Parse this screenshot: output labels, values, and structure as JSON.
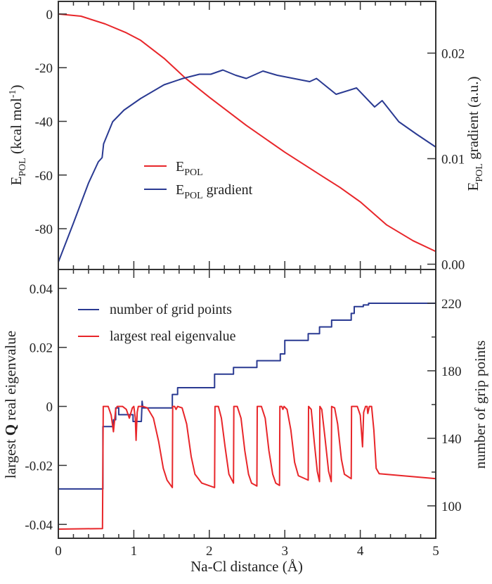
{
  "chart_data": [
    {
      "type": "line",
      "panel": "top",
      "xlim": [
        0,
        5
      ],
      "ylim_left": [
        -95.2,
        4.7
      ],
      "ylim_right": [
        -0.0005,
        0.0249
      ],
      "ylabel_left": {
        "main": "E",
        "sub": "POL",
        "rest": " (kcal mol",
        "sup": "-1",
        "close": ")"
      },
      "ylabel_right": {
        "main": "E",
        "sub": "POL",
        "rest": " gradient (a.u.)"
      },
      "yticks_left": [
        "0",
        "-20",
        "-40",
        "-60",
        "-80"
      ],
      "yticks_right": [
        "0.00",
        "0.01",
        "0.02"
      ],
      "legend_position": "center",
      "series": [
        {
          "name": "E_POL",
          "legend": {
            "main": "E",
            "sub": "POL",
            "rest": ""
          },
          "axis": "left",
          "color": "#e8262a",
          "points": [
            [
              0,
              0
            ],
            [
              0.3,
              -0.8
            ],
            [
              0.62,
              -3.7
            ],
            [
              0.9,
              -7
            ],
            [
              1.09,
              -9.8
            ],
            [
              1.4,
              -16.5
            ],
            [
              1.68,
              -23.8
            ],
            [
              2.0,
              -31
            ],
            [
              2.49,
              -41.5
            ],
            [
              3.0,
              -51.5
            ],
            [
              3.5,
              -60.5
            ],
            [
              3.73,
              -64.6
            ],
            [
              4.0,
              -70
            ],
            [
              4.35,
              -78.6
            ],
            [
              4.7,
              -84.5
            ],
            [
              5,
              -88.5
            ]
          ]
        },
        {
          "name": "E_POL gradient",
          "legend": {
            "main": "E",
            "sub": "POL",
            "rest": " gradient"
          },
          "axis": "right",
          "color": "#2a3a92",
          "points": [
            [
              0,
              0.0002
            ],
            [
              0.2,
              0.0039
            ],
            [
              0.4,
              0.0077
            ],
            [
              0.53,
              0.0097
            ],
            [
              0.58,
              0.0101
            ],
            [
              0.6,
              0.0114
            ],
            [
              0.72,
              0.0135
            ],
            [
              0.87,
              0.0146
            ],
            [
              1.09,
              0.0157
            ],
            [
              1.4,
              0.017
            ],
            [
              1.65,
              0.0176
            ],
            [
              1.87,
              0.018
            ],
            [
              2.02,
              0.018
            ],
            [
              2.18,
              0.0184
            ],
            [
              2.35,
              0.0179
            ],
            [
              2.49,
              0.0176
            ],
            [
              2.71,
              0.0183
            ],
            [
              2.9,
              0.0179
            ],
            [
              3.33,
              0.0173
            ],
            [
              3.42,
              0.0176
            ],
            [
              3.68,
              0.0161
            ],
            [
              3.95,
              0.0167
            ],
            [
              4.19,
              0.0149
            ],
            [
              4.29,
              0.0155
            ],
            [
              4.51,
              0.0135
            ],
            [
              4.75,
              0.0123
            ],
            [
              5,
              0.0111
            ]
          ]
        }
      ]
    },
    {
      "type": "line",
      "panel": "bottom",
      "xlim": [
        0,
        5
      ],
      "ylim_left": [
        -0.0447,
        0.0464
      ],
      "ylim_right": [
        80.8,
        240
      ],
      "xlabel": "Na-Cl distance (Å)",
      "xticks": [
        "0",
        "1",
        "2",
        "3",
        "4",
        "5"
      ],
      "ylabel_left": {
        "pre": "largest ",
        "bold": "Q",
        "rest": " real eigenvalue"
      },
      "ylabel_right": "number of grip points",
      "yticks_left": [
        "0.04",
        "0.02",
        "0",
        "-0.02",
        "-0.04"
      ],
      "yticks_right": [
        "220",
        "180",
        "140",
        "100"
      ],
      "legend_position": "top-left",
      "series": [
        {
          "name": "number of grid points",
          "axis": "right",
          "color": "#2a3a92",
          "step": true,
          "points": [
            [
              0,
              110
            ],
            [
              0.59,
              110
            ],
            [
              0.59,
              147
            ],
            [
              0.73,
              147
            ],
            [
              0.73,
              151
            ],
            [
              0.76,
              151
            ],
            [
              0.76,
              158
            ],
            [
              0.8,
              158
            ],
            [
              0.8,
              154
            ],
            [
              0.99,
              154
            ],
            [
              0.99,
              150
            ],
            [
              1.1,
              150
            ],
            [
              1.11,
              162
            ],
            [
              1.12,
              158
            ],
            [
              1.51,
              158
            ],
            [
              1.51,
              166
            ],
            [
              1.58,
              166
            ],
            [
              1.58,
              170
            ],
            [
              2.07,
              170
            ],
            [
              2.07,
              178
            ],
            [
              2.32,
              178
            ],
            [
              2.32,
              182
            ],
            [
              2.63,
              182
            ],
            [
              2.63,
              186
            ],
            [
              2.94,
              186
            ],
            [
              2.94,
              190
            ],
            [
              3.0,
              190
            ],
            [
              3.0,
              198
            ],
            [
              3.31,
              198
            ],
            [
              3.31,
              202
            ],
            [
              3.46,
              202
            ],
            [
              3.46,
              206
            ],
            [
              3.62,
              206
            ],
            [
              3.62,
              210
            ],
            [
              3.88,
              210
            ],
            [
              3.88,
              214
            ],
            [
              3.92,
              214
            ],
            [
              3.92,
              218
            ],
            [
              4.04,
              218
            ],
            [
              4.04,
              219
            ],
            [
              4.11,
              219
            ],
            [
              4.11,
              220
            ],
            [
              5,
              220
            ]
          ]
        },
        {
          "name": "largest real eigenvalue",
          "axis": "left",
          "color": "#e8262a",
          "points": [
            [
              0,
              -0.0416
            ],
            [
              0.585,
              -0.0414
            ],
            [
              0.595,
              0
            ],
            [
              0.66,
              0
            ],
            [
              0.7,
              -0.003
            ],
            [
              0.73,
              -0.0086
            ],
            [
              0.76,
              -0.001
            ],
            [
              0.78,
              0
            ],
            [
              0.85,
              0
            ],
            [
              0.9,
              -0.001
            ],
            [
              0.94,
              -0.004
            ],
            [
              0.98,
              -0.0005
            ],
            [
              1.0,
              0
            ],
            [
              1.02,
              -0.004
            ],
            [
              1.03,
              -0.0115
            ],
            [
              1.045,
              -0.002
            ],
            [
              1.06,
              0
            ],
            [
              1.12,
              0
            ],
            [
              1.18,
              -0.0005
            ],
            [
              1.26,
              -0.004
            ],
            [
              1.33,
              -0.012
            ],
            [
              1.39,
              -0.021
            ],
            [
              1.44,
              -0.025
            ],
            [
              1.51,
              -0.0275
            ],
            [
              1.515,
              0
            ],
            [
              1.54,
              0
            ],
            [
              1.56,
              -0.001
            ],
            [
              1.58,
              0
            ],
            [
              1.64,
              -0.0005
            ],
            [
              1.7,
              -0.006
            ],
            [
              1.76,
              -0.017
            ],
            [
              1.81,
              -0.023
            ],
            [
              1.9,
              -0.026
            ],
            [
              2.07,
              -0.0275
            ],
            [
              2.075,
              0
            ],
            [
              2.12,
              0
            ],
            [
              2.16,
              -0.004
            ],
            [
              2.21,
              -0.014
            ],
            [
              2.26,
              -0.023
            ],
            [
              2.32,
              -0.026
            ],
            [
              2.325,
              0
            ],
            [
              2.37,
              0
            ],
            [
              2.42,
              -0.004
            ],
            [
              2.47,
              -0.015
            ],
            [
              2.52,
              -0.023
            ],
            [
              2.56,
              -0.026
            ],
            [
              2.63,
              -0.027
            ],
            [
              2.635,
              0
            ],
            [
              2.69,
              0
            ],
            [
              2.74,
              -0.004
            ],
            [
              2.79,
              -0.015
            ],
            [
              2.84,
              -0.023
            ],
            [
              2.88,
              -0.026
            ],
            [
              2.93,
              -0.0268
            ],
            [
              2.935,
              0
            ],
            [
              2.96,
              0
            ],
            [
              2.975,
              -0.001
            ],
            [
              2.99,
              0
            ],
            [
              3.03,
              -0.001
            ],
            [
              3.08,
              -0.008
            ],
            [
              3.13,
              -0.019
            ],
            [
              3.18,
              -0.0235
            ],
            [
              3.31,
              -0.025
            ],
            [
              3.315,
              0
            ],
            [
              3.35,
              -0.001
            ],
            [
              3.39,
              -0.012
            ],
            [
              3.43,
              -0.022
            ],
            [
              3.46,
              -0.0255
            ],
            [
              3.465,
              0
            ],
            [
              3.49,
              -0.001
            ],
            [
              3.53,
              -0.01
            ],
            [
              3.58,
              -0.022
            ],
            [
              3.615,
              -0.0255
            ],
            [
              3.62,
              0
            ],
            [
              3.66,
              -0.0005
            ],
            [
              3.7,
              -0.006
            ],
            [
              3.75,
              -0.018
            ],
            [
              3.79,
              -0.023
            ],
            [
              3.88,
              -0.0245
            ],
            [
              3.885,
              0
            ],
            [
              3.96,
              0
            ],
            [
              4.0,
              -0.003
            ],
            [
              4.03,
              -0.0137
            ],
            [
              4.045,
              -0.002
            ],
            [
              4.07,
              0
            ],
            [
              4.09,
              0
            ],
            [
              4.1,
              -0.0024
            ],
            [
              4.12,
              0
            ],
            [
              4.15,
              0
            ],
            [
              4.18,
              -0.008
            ],
            [
              4.21,
              -0.021
            ],
            [
              4.25,
              -0.0228
            ],
            [
              5,
              -0.0245
            ]
          ]
        }
      ]
    }
  ]
}
